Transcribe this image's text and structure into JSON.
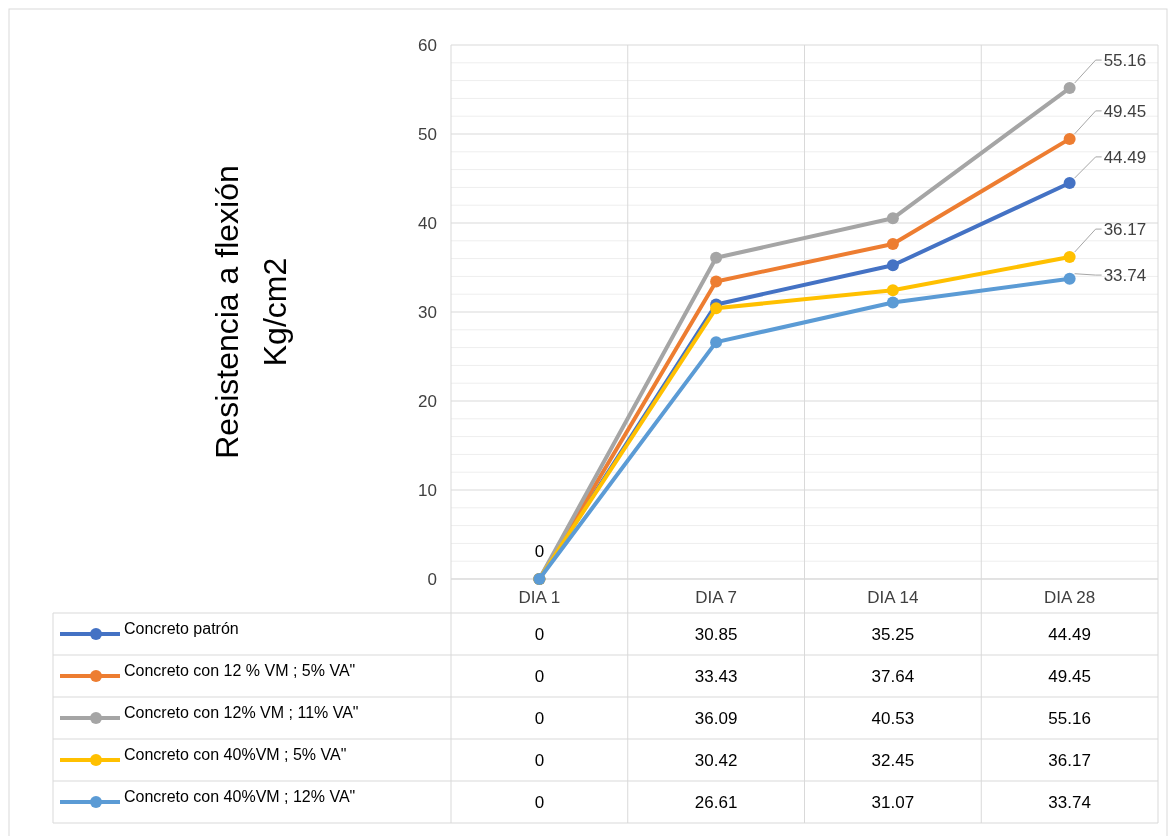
{
  "chart_data": {
    "type": "line",
    "ylabel": "Resistencia a flexión\nKg/cm2",
    "categories": [
      "DIA 1",
      "DIA 7",
      "DIA 14",
      "DIA 28"
    ],
    "series": [
      {
        "name": "Concreto patrón",
        "color": "#4472c4",
        "values": [
          0,
          30.85,
          35.25,
          44.49
        ]
      },
      {
        "name": "Concreto con 12 % VM  ; 5% VA\"",
        "color": "#ed7d31",
        "values": [
          0,
          33.43,
          37.64,
          49.45
        ]
      },
      {
        "name": "Concreto con 12% VM  ; 11% VA\"",
        "color": "#a5a5a5",
        "values": [
          0,
          36.09,
          40.53,
          55.16
        ]
      },
      {
        "name": "Concreto con 40%VM  ; 5% VA\"",
        "color": "#ffc000",
        "values": [
          0,
          30.42,
          32.45,
          36.17
        ]
      },
      {
        "name": "Concreto con 40%VM  ; 12% VA\"",
        "color": "#5b9bd5",
        "values": [
          0,
          26.61,
          31.07,
          33.74
        ]
      }
    ],
    "ylim": [
      0,
      60
    ],
    "yticks": [
      0,
      {
        "value": 2,
        "label": null
      },
      {
        "value": 4,
        "label": null
      },
      {
        "value": 6,
        "label": null
      },
      {
        "value": 8,
        "label": null
      },
      10,
      {
        "value": 12,
        "label": null
      },
      {
        "value": 14,
        "label": null
      },
      {
        "value": 16,
        "label": null
      },
      {
        "value": 18,
        "label": null
      },
      20,
      {
        "value": 22,
        "label": null
      },
      {
        "value": 24,
        "label": null
      },
      {
        "value": 26,
        "label": null
      },
      {
        "value": 28,
        "label": null
      },
      30,
      {
        "value": 32,
        "label": null
      },
      {
        "value": 34,
        "label": null
      },
      {
        "value": 36,
        "label": null
      },
      {
        "value": 38,
        "label": null
      },
      40,
      {
        "value": 42,
        "label": null
      },
      {
        "value": 44,
        "label": null
      },
      {
        "value": 46,
        "label": null
      },
      {
        "value": 48,
        "label": null
      },
      50,
      {
        "value": 52,
        "label": null
      },
      {
        "value": 54,
        "label": null
      },
      {
        "value": 56,
        "label": null
      },
      {
        "value": 58,
        "label": null
      },
      60
    ],
    "grid": true,
    "marker": "circle",
    "legend": "bottom",
    "data_labels": true,
    "annotations": [
      {
        "text": "0",
        "x": "DIA 1",
        "y": 0
      },
      {
        "text": "55.16",
        "x": "DIA 28",
        "y": 55.16
      },
      {
        "text": "49.45",
        "x": "DIA 28",
        "y": 49.45
      },
      {
        "text": "44.49",
        "x": "DIA 28",
        "y": 44.49
      },
      {
        "text": "36.17",
        "x": "DIA 28",
        "y": 36.17
      },
      {
        "text": "33.74",
        "x": "DIA 28",
        "y": 33.74
      }
    ]
  }
}
